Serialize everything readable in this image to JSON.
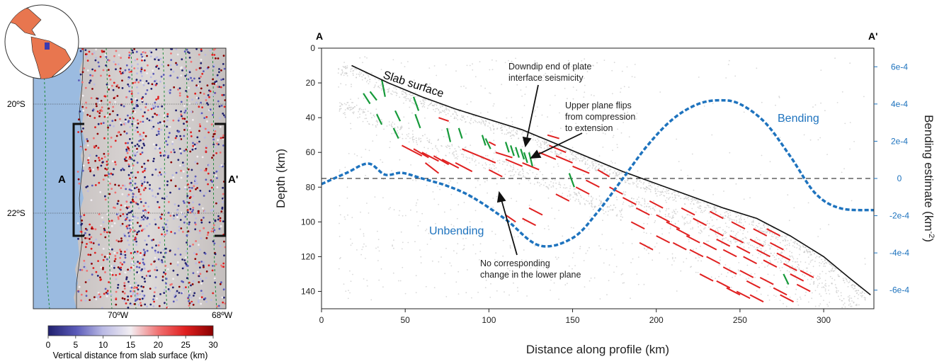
{
  "map_panel": {
    "lat_labels": [
      "20ºS",
      "22ºS"
    ],
    "lon_labels": [
      "70ºW",
      "68ºW"
    ],
    "profile_start": "A",
    "profile_end": "A'",
    "colorbar": {
      "ticks": [
        "0",
        "5",
        "10",
        "15",
        "20",
        "25",
        "30"
      ],
      "label": "Vertical distance from slab surface (km)",
      "colors": [
        "#20206e",
        "#5a5ab8",
        "#b9b9e4",
        "#f2eef2",
        "#f07070",
        "#e02020",
        "#8a0000"
      ]
    },
    "colors": {
      "ocean": "#9bbbe0",
      "land": "#d5d0cf",
      "globe_land": "#e8764f",
      "globe_ocean": "#ffffff"
    }
  },
  "profile_panel": {
    "end_labels": {
      "left": "A",
      "right": "A'"
    },
    "annotations": {
      "slab_surface": "Slab surface",
      "downdip_line1": "Downdip end of plate",
      "downdip_line2": "interface seismicity",
      "flip_line1": "Upper plane flips",
      "flip_line2": "from compression",
      "flip_line3": "to extension",
      "bending": "Bending",
      "unbending": "Unbending",
      "lower_line1": "No corresponding",
      "lower_line2": "change in the lower plane"
    },
    "colors": {
      "compression": "#e02020",
      "extension": "#169a3a",
      "bending_curve": "#1e73be",
      "slab": "#111111",
      "seismicity": "#c8c8c8"
    }
  },
  "chart_data": {
    "type": "line",
    "xlabel": "Distance along profile (km)",
    "ylabel": "Depth (km)",
    "y2label": "Bending estimate (km",
    "y2label_sup": "-2",
    "y2label_close": ")",
    "xlim": [
      0,
      330
    ],
    "ylim": [
      150,
      0
    ],
    "y2lim": [
      -0.0007,
      0.0007
    ],
    "xticks": [
      "0",
      "50",
      "100",
      "150",
      "200",
      "250",
      "300"
    ],
    "yticks": [
      "0",
      "20",
      "40",
      "60",
      "80",
      "100",
      "120",
      "140"
    ],
    "y2ticks": [
      "6e-4",
      "4e-4",
      "2e-4",
      "0",
      "-2e-4",
      "-4e-4",
      "-6e-4"
    ],
    "zero_line_depth": 75,
    "series": [
      {
        "name": "Slab surface",
        "axis": "left",
        "x": [
          18,
          40,
          60,
          80,
          100,
          120,
          140,
          160,
          180,
          200,
          220,
          240,
          260,
          280,
          300,
          315,
          328
        ],
        "y": [
          10,
          20,
          28,
          35,
          41,
          47,
          55,
          63,
          71,
          78,
          85,
          92,
          98,
          108,
          120,
          132,
          142
        ]
      },
      {
        "name": "Bending",
        "axis": "right",
        "x": [
          0,
          15,
          28,
          38,
          48,
          60,
          75,
          90,
          110,
          130,
          150,
          165,
          180,
          195,
          210,
          225,
          238,
          250,
          265,
          280,
          295,
          310,
          330
        ],
        "y": [
          -3e-05,
          3e-05,
          8e-05,
          2e-05,
          3e-05,
          0.0,
          -4e-05,
          -0.0001,
          -0.00022,
          -0.00036,
          -0.00032,
          -0.00018,
          0.0,
          0.00018,
          0.00032,
          0.0004,
          0.00042,
          0.0004,
          0.0003,
          0.00012,
          -8e-05,
          -0.00016,
          -0.00017
        ]
      }
    ],
    "focal_mechanisms": {
      "extension": [
        [
          25,
          26,
          29,
          32
        ],
        [
          29,
          25,
          33,
          30
        ],
        [
          36,
          18,
          38,
          28
        ],
        [
          33,
          38,
          36,
          44
        ],
        [
          44,
          36,
          47,
          42
        ],
        [
          55,
          28,
          58,
          36
        ],
        [
          43,
          46,
          46,
          52
        ],
        [
          56,
          38,
          59,
          46
        ],
        [
          75,
          46,
          77,
          54
        ],
        [
          82,
          46,
          84,
          52
        ],
        [
          96,
          50,
          98,
          56
        ],
        [
          98,
          52,
          101,
          58
        ],
        [
          110,
          54,
          112,
          60
        ],
        [
          113,
          56,
          115,
          62
        ],
        [
          116,
          57,
          118,
          63
        ],
        [
          119,
          58,
          121,
          64
        ],
        [
          121,
          60,
          123,
          66
        ],
        [
          124,
          60,
          126,
          68
        ],
        [
          148,
          72,
          151,
          80
        ],
        [
          276,
          130,
          279,
          136
        ]
      ],
      "compression": [
        [
          48,
          56,
          60,
          62
        ],
        [
          60,
          60,
          70,
          65
        ],
        [
          67,
          62,
          76,
          67
        ],
        [
          72,
          64,
          82,
          69
        ],
        [
          80,
          66,
          90,
          71
        ],
        [
          55,
          58,
          64,
          63
        ],
        [
          84,
          58,
          94,
          62
        ],
        [
          62,
          66,
          70,
          72
        ],
        [
          94,
          62,
          104,
          66
        ],
        [
          104,
          60,
          114,
          63
        ],
        [
          110,
          64,
          120,
          68
        ],
        [
          120,
          66,
          130,
          70
        ],
        [
          130,
          60,
          140,
          64
        ],
        [
          136,
          56,
          146,
          60
        ],
        [
          140,
          62,
          150,
          66
        ],
        [
          150,
          68,
          160,
          72
        ],
        [
          158,
          76,
          166,
          80
        ],
        [
          100,
          70,
          108,
          74
        ],
        [
          70,
          40,
          76,
          42
        ],
        [
          100,
          54,
          104,
          56
        ],
        [
          135,
          50,
          142,
          52
        ],
        [
          152,
          80,
          160,
          84
        ],
        [
          165,
          70,
          172,
          74
        ],
        [
          172,
          80,
          180,
          84
        ],
        [
          140,
          84,
          148,
          88
        ],
        [
          124,
          92,
          132,
          96
        ],
        [
          120,
          98,
          128,
          102
        ],
        [
          110,
          96,
          116,
          100
        ],
        [
          180,
          86,
          188,
          90
        ],
        [
          188,
          92,
          196,
          96
        ],
        [
          196,
          88,
          204,
          92
        ],
        [
          200,
          96,
          208,
          100
        ],
        [
          206,
          100,
          214,
          104
        ],
        [
          212,
          104,
          220,
          108
        ],
        [
          218,
          108,
          226,
          112
        ],
        [
          222,
          98,
          230,
          102
        ],
        [
          228,
          112,
          236,
          116
        ],
        [
          232,
          104,
          240,
          108
        ],
        [
          236,
          110,
          244,
          114
        ],
        [
          240,
          116,
          248,
          120
        ],
        [
          244,
          108,
          252,
          112
        ],
        [
          248,
          114,
          256,
          118
        ],
        [
          252,
          120,
          260,
          124
        ],
        [
          256,
          110,
          264,
          114
        ],
        [
          260,
          116,
          268,
          120
        ],
        [
          264,
          122,
          272,
          126
        ],
        [
          268,
          112,
          276,
          116
        ],
        [
          272,
          118,
          280,
          122
        ],
        [
          276,
          124,
          284,
          128
        ],
        [
          280,
          130,
          288,
          134
        ],
        [
          284,
          136,
          292,
          140
        ],
        [
          250,
          128,
          258,
          132
        ],
        [
          254,
          134,
          262,
          138
        ],
        [
          262,
          132,
          270,
          136
        ],
        [
          270,
          138,
          278,
          142
        ],
        [
          240,
          126,
          248,
          130
        ],
        [
          230,
          120,
          238,
          124
        ],
        [
          220,
          116,
          228,
          120
        ],
        [
          210,
          112,
          218,
          116
        ],
        [
          200,
          108,
          208,
          112
        ],
        [
          190,
          112,
          198,
          116
        ],
        [
          185,
          100,
          193,
          104
        ],
        [
          245,
          100,
          253,
          104
        ],
        [
          258,
          104,
          266,
          108
        ],
        [
          266,
          104,
          274,
          108
        ],
        [
          232,
          94,
          240,
          98
        ],
        [
          215,
          92,
          223,
          96
        ],
        [
          242,
          138,
          250,
          142
        ],
        [
          256,
          142,
          264,
          146
        ],
        [
          274,
          142,
          282,
          146
        ],
        [
          286,
          128,
          294,
          132
        ],
        [
          226,
          130,
          234,
          134
        ],
        [
          236,
          134,
          244,
          138
        ],
        [
          248,
          140,
          256,
          144
        ]
      ]
    }
  }
}
